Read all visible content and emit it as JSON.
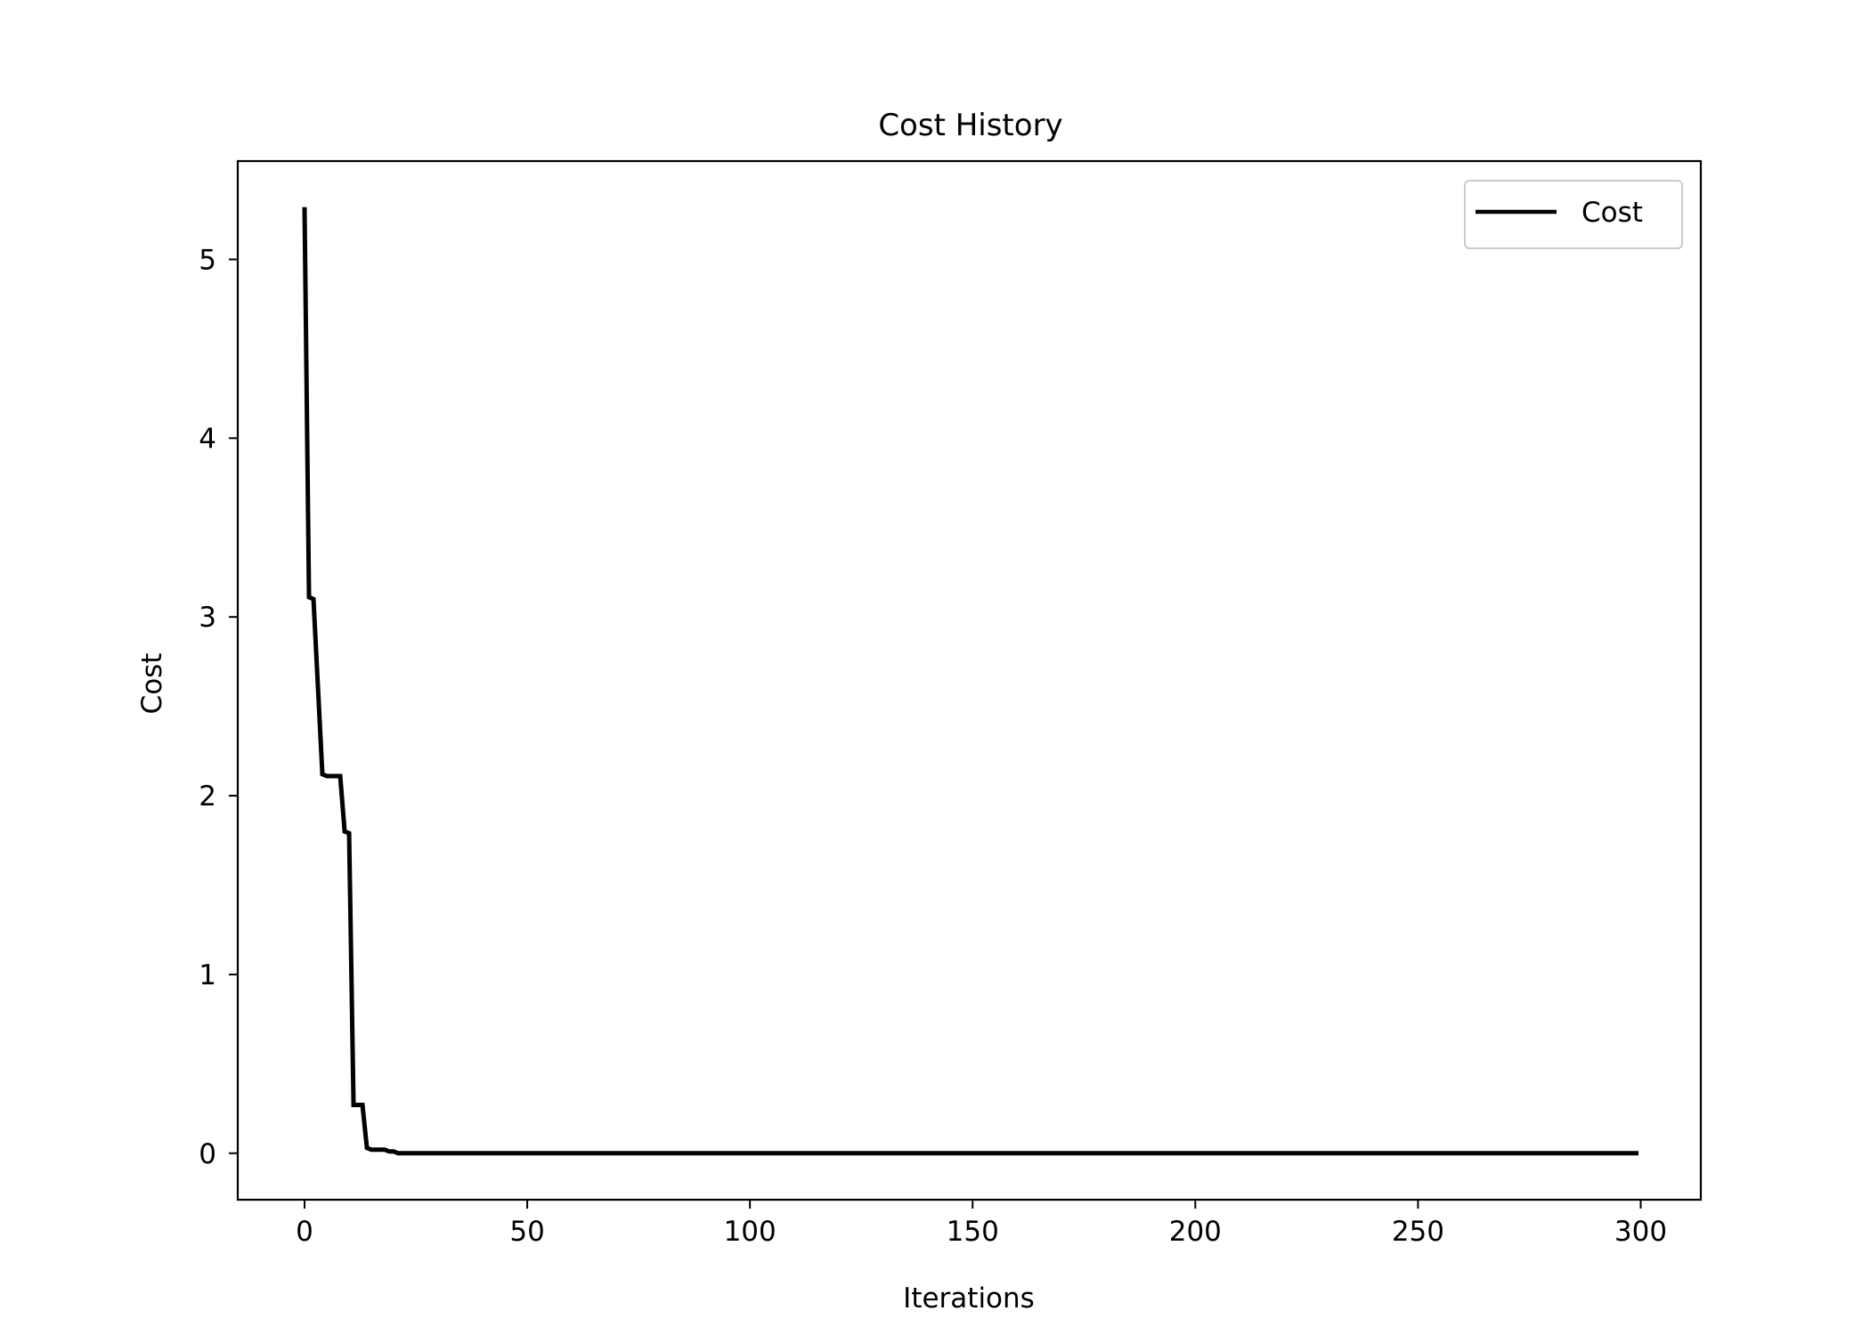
{
  "chart_data": {
    "type": "line",
    "title": "Cost History",
    "xlabel": "Iterations",
    "ylabel": "Cost",
    "xlim": [
      -15,
      313.5
    ],
    "ylim": [
      -0.26,
      5.55
    ],
    "xticks": [
      0,
      50,
      100,
      150,
      200,
      250,
      300
    ],
    "yticks": [
      0,
      1,
      2,
      3,
      4,
      5
    ],
    "grid": false,
    "legend_position": "top-right",
    "series": [
      {
        "name": "Cost",
        "color": "#000000",
        "x": [
          0,
          1,
          2,
          4,
          5,
          7,
          8,
          9,
          10,
          11,
          12,
          13,
          14,
          15,
          16,
          17,
          18,
          19,
          20,
          21,
          299
        ],
        "y": [
          5.28,
          3.11,
          3.1,
          2.12,
          2.11,
          2.11,
          2.11,
          1.8,
          1.79,
          0.27,
          0.27,
          0.27,
          0.03,
          0.02,
          0.02,
          0.02,
          0.02,
          0.01,
          0.01,
          0.0,
          0.0
        ]
      }
    ]
  }
}
